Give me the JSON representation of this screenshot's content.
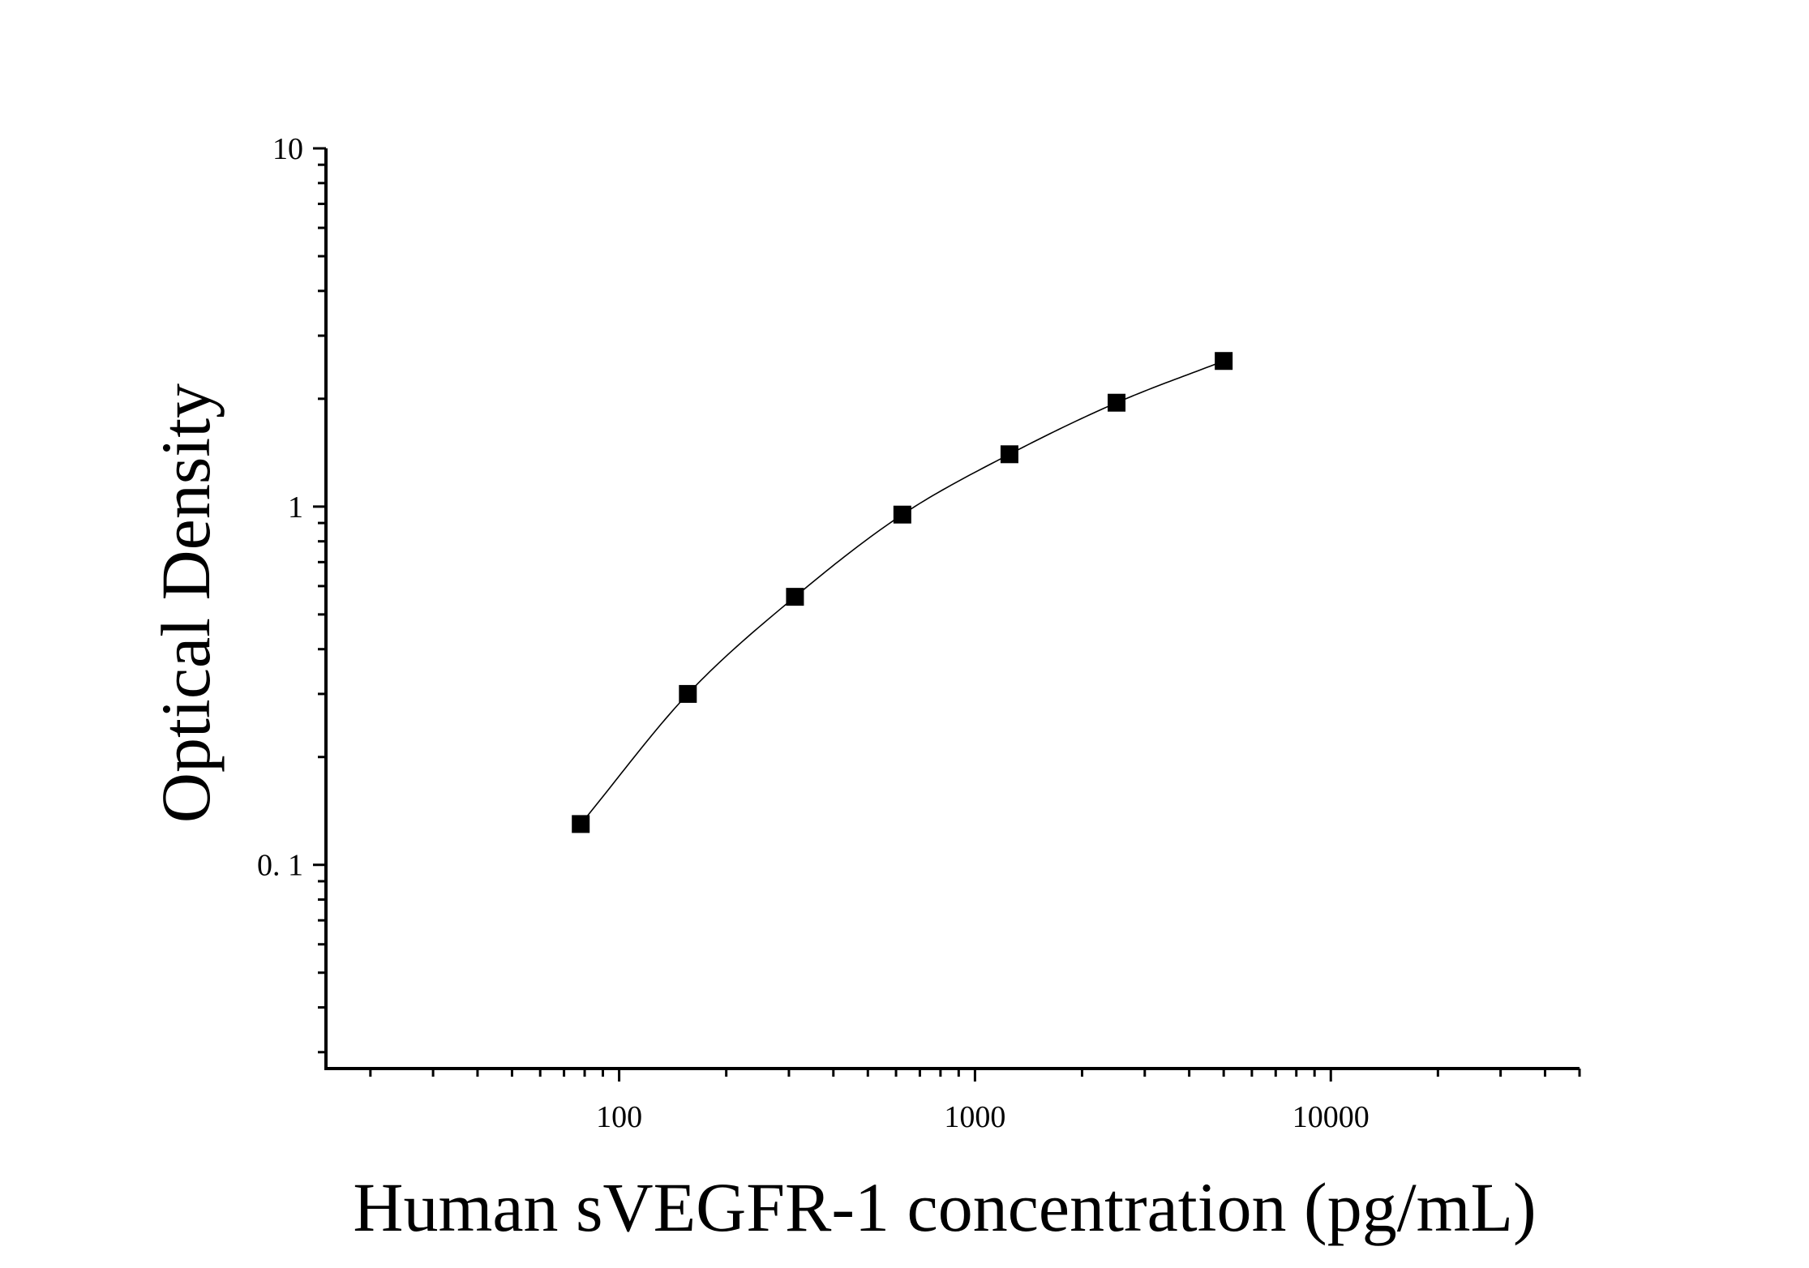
{
  "chart_data": {
    "type": "scatter",
    "title": "",
    "xlabel": "Human sVEGFR-1 concentration (pg/mL)",
    "ylabel": "Optical Density",
    "xscale": "log",
    "yscale": "log",
    "xlim": [
      15,
      50000
    ],
    "ylim": [
      0.027,
      10
    ],
    "x_ticks": [
      {
        "value": 100,
        "label": "100"
      },
      {
        "value": 1000,
        "label": "1000"
      },
      {
        "value": 10000,
        "label": "10000"
      }
    ],
    "y_ticks": [
      {
        "value": 0.1,
        "label": "0. 1"
      },
      {
        "value": 1,
        "label": "1"
      },
      {
        "value": 10,
        "label": "10"
      }
    ],
    "grid": false,
    "legend": "none",
    "marker": "square",
    "marker_color": "#000000",
    "fit_line_color": "#000000",
    "series": [
      {
        "x": [
          78,
          156,
          312,
          625,
          1250,
          2500,
          5000
        ],
        "y": [
          0.13,
          0.3,
          0.56,
          0.95,
          1.4,
          1.95,
          2.55
        ]
      }
    ]
  }
}
